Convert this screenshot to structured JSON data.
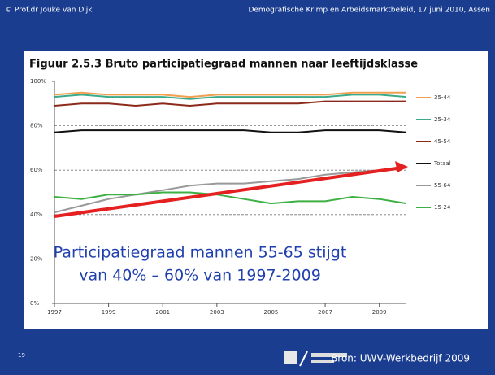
{
  "slide": {
    "author": "© Prof.dr Jouke van Dijk",
    "event": "Demografische Krimp en Arbeidsmarktbeleid, 17 juni 2010, Assen",
    "page_number": "19",
    "source": "Bron: UWV-Werkbedrijf 2009",
    "annotation": [
      "Participatiegraad mannen 55-65 stijgt",
      "van 40% – 60% van 1997-2009"
    ]
  },
  "chart_data": {
    "type": "line",
    "title": "Figuur 2.5.3 Bruto participatiegraad mannen naar leeftijdsklasse",
    "x": [
      1997,
      1998,
      1999,
      2000,
      2001,
      2002,
      2003,
      2004,
      2005,
      2006,
      2007,
      2008,
      2009,
      2010
    ],
    "xlim": [
      1997,
      2010
    ],
    "xticks": [
      1997,
      1999,
      2001,
      2003,
      2005,
      2007,
      2009
    ],
    "ylim": [
      0,
      100
    ],
    "yticks": [
      {
        "value": 0,
        "label": "0%"
      },
      {
        "value": 20,
        "label": "20%"
      },
      {
        "value": 40,
        "label": "40%"
      },
      {
        "value": 60,
        "label": "60%"
      },
      {
        "value": 80,
        "label": "80%"
      },
      {
        "value": 100,
        "label": "100%"
      }
    ],
    "grid": true,
    "legend": "right",
    "series": [
      {
        "name": "35-44",
        "color": "#f0a050",
        "values": [
          94,
          95,
          94,
          94,
          94,
          93,
          94,
          94,
          94,
          94,
          94,
          95,
          95,
          95
        ]
      },
      {
        "name": "25-34",
        "color": "#3aaa8a",
        "values": [
          93,
          94,
          93,
          93,
          93,
          92,
          93,
          93,
          93,
          93,
          93,
          94,
          94,
          93
        ]
      },
      {
        "name": "45-54",
        "color": "#8b2a1a",
        "values": [
          89,
          90,
          90,
          89,
          90,
          89,
          90,
          90,
          90,
          90,
          91,
          91,
          91,
          91
        ]
      },
      {
        "name": "Totaal",
        "color": "#111111",
        "values": [
          77,
          78,
          78,
          78,
          78,
          78,
          78,
          78,
          77,
          77,
          78,
          78,
          78,
          77
        ]
      },
      {
        "name": "55-64",
        "color": "#999999",
        "values": [
          41,
          44,
          47,
          49,
          51,
          53,
          54,
          54,
          55,
          56,
          58,
          59,
          60,
          61
        ]
      },
      {
        "name": "15-24",
        "color": "#3cb043",
        "values": [
          48,
          47,
          49,
          49,
          50,
          50,
          49,
          47,
          45,
          46,
          46,
          48,
          47,
          45
        ]
      }
    ]
  }
}
